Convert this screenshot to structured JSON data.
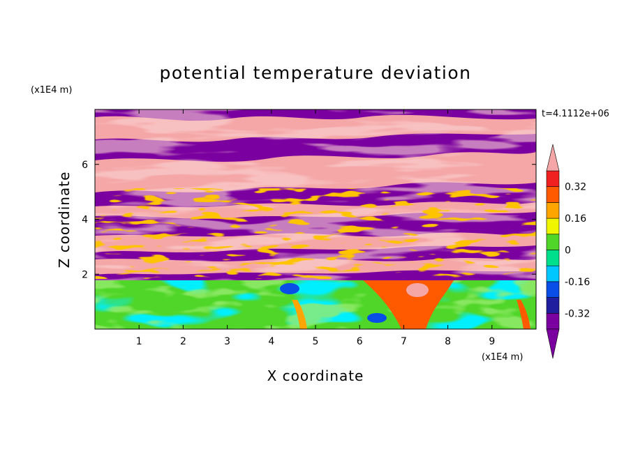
{
  "chart_data": {
    "type": "heatmap",
    "title": "potential temperature deviation",
    "xlabel": "X coordinate",
    "ylabel": "Z coordinate",
    "x_unit": "(x1E4 m)",
    "z_unit": "(x1E4 m)",
    "time_label": "t=4.1112e+06",
    "xlim": [
      0,
      10
    ],
    "ylim": [
      0,
      8
    ],
    "x_ticks": [
      "1",
      "2",
      "3",
      "4",
      "5",
      "6",
      "7",
      "8",
      "9"
    ],
    "y_ticks": [
      "2",
      "4",
      "6"
    ],
    "colorbar": {
      "labels": [
        "0.32",
        "0.16",
        "0",
        "-0.16",
        "-0.32"
      ],
      "label_values": [
        0.32,
        0.16,
        0,
        -0.16,
        -0.32
      ],
      "levels": [
        -0.4,
        -0.32,
        -0.24,
        -0.16,
        -0.08,
        0,
        0.08,
        0.16,
        0.24,
        0.32,
        0.4
      ],
      "colors": [
        "#7b00a0",
        "#1e1e9e",
        "#0a4ee8",
        "#00c8ff",
        "#00e08c",
        "#50d628",
        "#f0f500",
        "#ffa500",
        "#ff5a00",
        "#f02020",
        "#f5a7a7"
      ],
      "extend": "both"
    }
  }
}
